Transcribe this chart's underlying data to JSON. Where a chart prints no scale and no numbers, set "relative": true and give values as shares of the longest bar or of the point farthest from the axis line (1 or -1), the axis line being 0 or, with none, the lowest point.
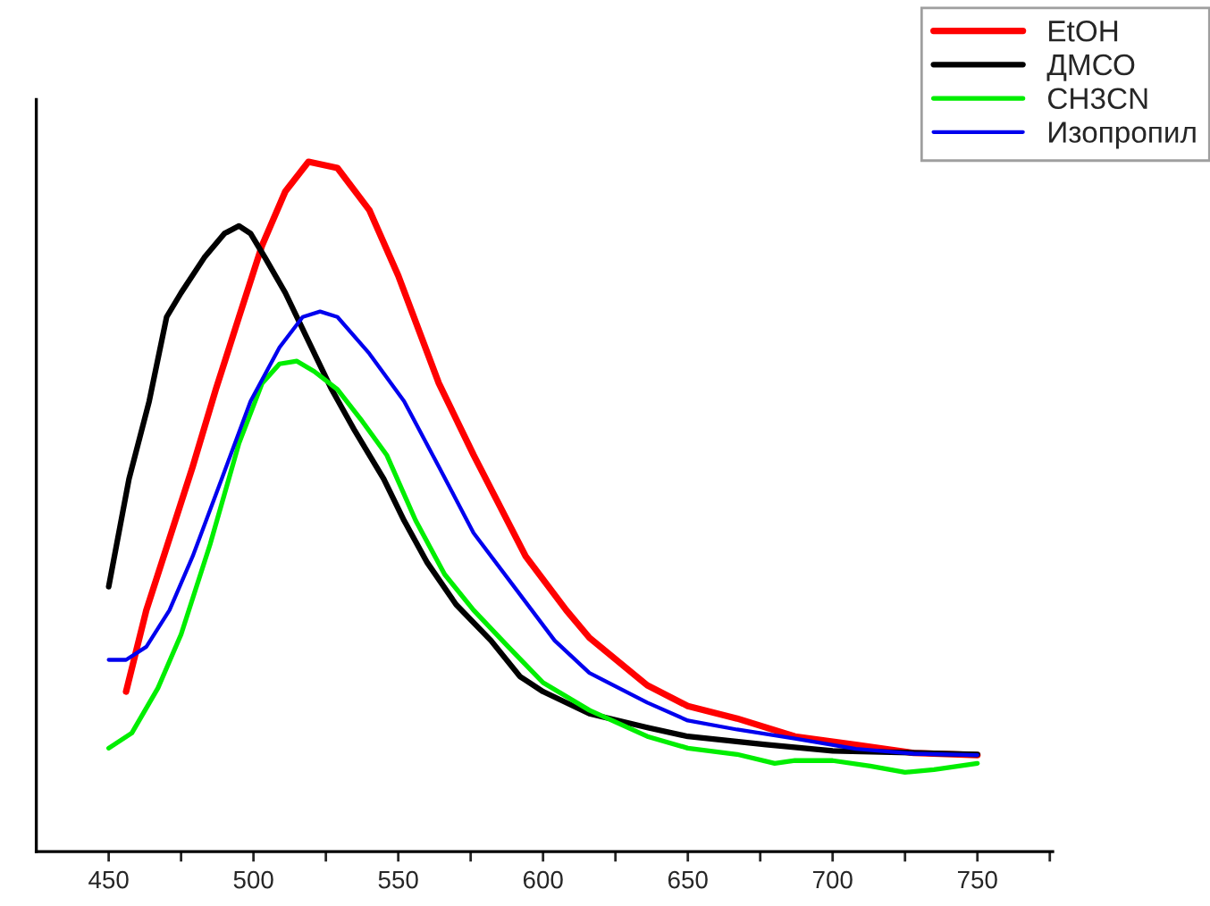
{
  "chart_data": {
    "type": "line",
    "relative": true,
    "legend": "top right",
    "grid": false,
    "marker": "none",
    "line_style": "solid",
    "xlim": [
      425,
      776
    ],
    "xticks": [
      450,
      {
        "value": 475,
        "label": null
      },
      500,
      {
        "value": 525,
        "label": null
      },
      550,
      {
        "value": 575,
        "label": null
      },
      600,
      {
        "value": 625,
        "label": null
      },
      650,
      {
        "value": 675,
        "label": null
      },
      700,
      {
        "value": 725,
        "label": null
      },
      750,
      {
        "value": 775,
        "label": null
      }
    ],
    "series": [
      {
        "name": "EtOH",
        "color": "#ff0000",
        "x": [
          456,
          463,
          471,
          479,
          487,
          495,
          503,
          511,
          519,
          529,
          540,
          550,
          564,
          576,
          594,
          608,
          616,
          636,
          650,
          667,
          687,
          708,
          728,
          750
        ],
        "values": [
          0.232,
          0.35,
          0.454,
          0.558,
          0.67,
          0.775,
          0.879,
          0.957,
          1.0,
          0.991,
          0.93,
          0.835,
          0.679,
          0.575,
          0.428,
          0.35,
          0.31,
          0.241,
          0.211,
          0.193,
          0.167,
          0.155,
          0.143,
          0.14
        ]
      },
      {
        "name": "ДМСО",
        "color": "#000000",
        "x": [
          450,
          457,
          464,
          470,
          475,
          483,
          490,
          495,
          499,
          504,
          511,
          519,
          527,
          535,
          545,
          552,
          560,
          570,
          582,
          592,
          600,
          616,
          636,
          650,
          677,
          700,
          750
        ],
        "values": [
          0.384,
          0.54,
          0.653,
          0.775,
          0.81,
          0.861,
          0.896,
          0.907,
          0.896,
          0.861,
          0.81,
          0.74,
          0.67,
          0.61,
          0.54,
          0.48,
          0.419,
          0.358,
          0.306,
          0.254,
          0.232,
          0.2,
          0.18,
          0.167,
          0.155,
          0.146,
          0.141
        ]
      },
      {
        "name": "CH3CN",
        "color": "#00ee00",
        "x": [
          450,
          458,
          467,
          475,
          485,
          495,
          503,
          509,
          515,
          521,
          529,
          537,
          546,
          556,
          566,
          576,
          588,
          600,
          616,
          636,
          650,
          667,
          680,
          687,
          700,
          713,
          725,
          735,
          750
        ],
        "values": [
          0.15,
          0.172,
          0.237,
          0.315,
          0.445,
          0.592,
          0.679,
          0.707,
          0.711,
          0.696,
          0.67,
          0.627,
          0.575,
          0.48,
          0.402,
          0.35,
          0.297,
          0.245,
          0.205,
          0.167,
          0.15,
          0.141,
          0.128,
          0.132,
          0.132,
          0.124,
          0.115,
          0.119,
          0.128
        ]
      },
      {
        "name": "Изопропил",
        "color": "#0000ee",
        "x": [
          450,
          456,
          463,
          471,
          479,
          489,
          499,
          509,
          517,
          523,
          529,
          540,
          552,
          564,
          576,
          590,
          604,
          616,
          636,
          650,
          667,
          687,
          708,
          728,
          750
        ],
        "values": [
          0.278,
          0.278,
          0.297,
          0.35,
          0.428,
          0.54,
          0.653,
          0.731,
          0.775,
          0.783,
          0.775,
          0.722,
          0.653,
          0.558,
          0.462,
          0.384,
          0.306,
          0.259,
          0.216,
          0.19,
          0.177,
          0.164,
          0.149,
          0.142,
          0.14
        ]
      }
    ]
  }
}
